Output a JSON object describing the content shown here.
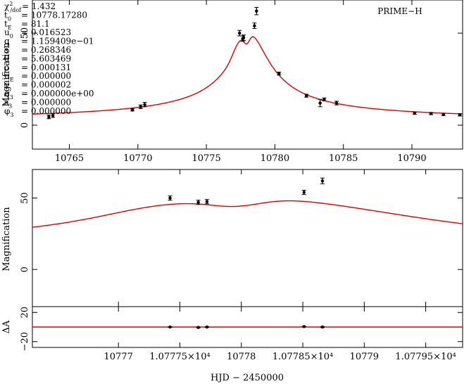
{
  "chart_data": [
    {
      "type": "line",
      "panel": "full",
      "band_label": "PRIME−H",
      "ylabel": "Magnification",
      "xlim": [
        10762.3,
        10793.7
      ],
      "ylim": [
        -13,
        68
      ],
      "xticks": [
        10765,
        10770,
        10775,
        10780,
        10785,
        10790
      ],
      "xtick_labels": [
        "10765",
        "10770",
        "10775",
        "10780",
        "10785",
        "10790"
      ],
      "yticks": [
        0,
        50
      ],
      "ytick_labels": [
        "0",
        "50"
      ],
      "model_color": "#dd0000",
      "data_color": "#000000",
      "parameters": [
        {
          "sym": "χ",
          "sup": "2",
          "sub": "/dof",
          "eq": "= 1.432"
        },
        {
          "sym": "t",
          "sub": "0",
          "eq": "= 10778.17280"
        },
        {
          "sym": "t",
          "sub": "E",
          "eq": "= 81.1"
        },
        {
          "sym": "u",
          "sub": "0",
          "eq": "= 0.016523"
        },
        {
          "sym": "q",
          "sub": "",
          "eq": "= 1.159409e−01"
        },
        {
          "sym": "s",
          "sub": "",
          "eq": "= 0.268346"
        },
        {
          "sym": "θ",
          "sub": "",
          "eq": "= 5.603469"
        },
        {
          "sym": "ρ",
          "sub": "",
          "eq": "= 0.000131"
        },
        {
          "sym": "π",
          "sub": "E",
          "eq": "= 0.000000"
        },
        {
          "sym": "γ",
          "sub": "",
          "eq": "= 0.000002"
        },
        {
          "sym": "q",
          "sub": "3",
          "eq": "= 0.000000e+00"
        },
        {
          "sym": "s",
          "sub": "3",
          "eq": "= 0.000000"
        },
        {
          "sym": "φ",
          "sub": "3",
          "eq": "= 0.000000"
        }
      ],
      "data_points": [
        {
          "x": 10763.5,
          "y": 4.5,
          "err": 1.0
        },
        {
          "x": 10763.8,
          "y": 5.2,
          "err": 1.0
        },
        {
          "x": 10769.6,
          "y": 8.3,
          "err": 0.6
        },
        {
          "x": 10770.2,
          "y": 10.0,
          "err": 1.0
        },
        {
          "x": 10770.5,
          "y": 11.2,
          "err": 1.2
        },
        {
          "x": 10777.42,
          "y": 50.0,
          "err": 1.5
        },
        {
          "x": 10777.65,
          "y": 47.0,
          "err": 1.5
        },
        {
          "x": 10777.72,
          "y": 47.5,
          "err": 1.5
        },
        {
          "x": 10778.51,
          "y": 54.0,
          "err": 1.5
        },
        {
          "x": 10778.66,
          "y": 62.0,
          "err": 2.0
        },
        {
          "x": 10780.3,
          "y": 28.0,
          "err": 0.8
        },
        {
          "x": 10782.3,
          "y": 16.0,
          "err": 0.8
        },
        {
          "x": 10783.3,
          "y": 12.0,
          "err": 2.0
        },
        {
          "x": 10783.6,
          "y": 14.0,
          "err": 0.8
        },
        {
          "x": 10784.5,
          "y": 12.0,
          "err": 1.0
        },
        {
          "x": 10790.2,
          "y": 6.5,
          "err": 0.6
        },
        {
          "x": 10791.4,
          "y": 6.3,
          "err": 0.6
        },
        {
          "x": 10792.3,
          "y": 5.8,
          "err": 0.6
        },
        {
          "x": 10793.5,
          "y": 5.6,
          "err": 0.6
        }
      ]
    },
    {
      "type": "line",
      "panel": "zoom",
      "ylabel": "Magnification",
      "xlim": [
        10776.3,
        10779.8
      ],
      "ylim": [
        -26,
        70
      ],
      "xticks": [
        10777,
        10777.5,
        10778,
        10778.5,
        10779,
        10779.5
      ],
      "xtick_labels": [
        "10777",
        "1.07775×10⁴",
        "10778",
        "1.07785×10⁴",
        "10779",
        "1.07795×10⁴"
      ],
      "yticks": [
        0,
        50
      ],
      "ytick_labels": [
        "0",
        "50"
      ],
      "xlabel": "HJD − 2450000",
      "data_points": [
        {
          "x": 10777.42,
          "y": 50.0,
          "err": 1.5
        },
        {
          "x": 10777.65,
          "y": 47.0,
          "err": 1.5
        },
        {
          "x": 10777.72,
          "y": 47.5,
          "err": 1.5
        },
        {
          "x": 10778.51,
          "y": 54.0,
          "err": 1.5
        },
        {
          "x": 10778.66,
          "y": 62.0,
          "err": 2.0
        }
      ]
    },
    {
      "type": "scatter",
      "panel": "residuals",
      "ylabel": "ΔA",
      "xlim": [
        10776.3,
        10779.8
      ],
      "ylim": [
        -28,
        28
      ],
      "yticks": [
        -20,
        20
      ],
      "ytick_labels": [
        "−20",
        "20"
      ],
      "data_points": [
        {
          "x": 10777.42,
          "y": 0.0,
          "err": 0.6
        },
        {
          "x": 10777.65,
          "y": -0.5,
          "err": 0.6
        },
        {
          "x": 10777.72,
          "y": 0.0,
          "err": 0.6
        },
        {
          "x": 10778.51,
          "y": 0.5,
          "err": 0.6
        },
        {
          "x": 10778.66,
          "y": 0.0,
          "err": 0.8
        }
      ]
    }
  ]
}
